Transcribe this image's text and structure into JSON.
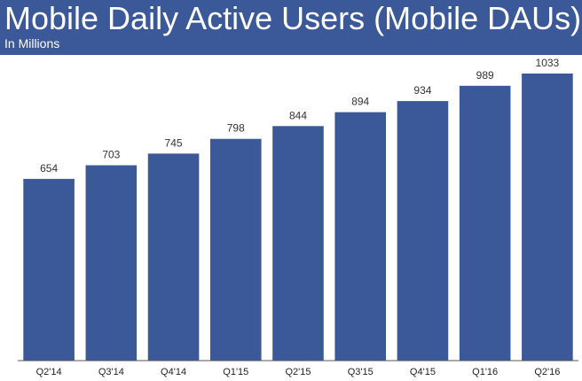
{
  "header": {
    "title": "Mobile Daily Active Users (Mobile DAUs)",
    "subtitle": "In Millions"
  },
  "colors": {
    "header_bg": "#3b5998",
    "bar": "#3b5998",
    "axis": "#555555"
  },
  "chart_data": {
    "type": "bar",
    "title": "Mobile Daily Active Users (Mobile DAUs)",
    "subtitle": "In Millions",
    "categories": [
      "Q2'14",
      "Q3'14",
      "Q4'14",
      "Q1'15",
      "Q2'15",
      "Q3'15",
      "Q4'15",
      "Q1'16",
      "Q2'16"
    ],
    "values": [
      654,
      703,
      745,
      798,
      844,
      894,
      934,
      989,
      1033
    ],
    "data_labels": [
      "654",
      "703",
      "745",
      "798",
      "844",
      "894",
      "934",
      "989",
      "1033"
    ],
    "xlabel": "",
    "ylabel": "",
    "ylim": [
      0,
      1100
    ],
    "grid": false,
    "legend": "none"
  }
}
